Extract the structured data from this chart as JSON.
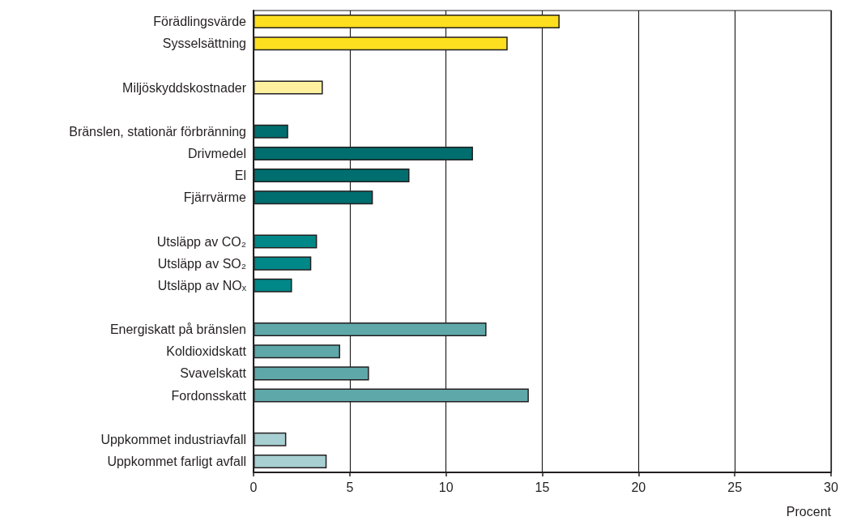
{
  "chart_data": {
    "type": "bar",
    "orientation": "horizontal",
    "xlabel": "Procent",
    "categories": [
      "Förädlingsvärde",
      "Sysselsättning",
      null,
      "Miljöskyddskostnader",
      null,
      "Bränslen, stationär förbränning",
      "Drivmedel",
      "El",
      "Fjärrvärme",
      null,
      "Utsläpp av CO₂",
      "Utsläpp av SO₂",
      "Utsläpp av NOₓ",
      null,
      "Energiskatt på bränslen",
      "Koldioxidskatt",
      "Svavelskatt",
      "Fordonsskatt",
      null,
      "Uppkommet industriavfall",
      "Uppkommet farligt avfall"
    ],
    "values": [
      15.9,
      13.2,
      null,
      3.6,
      null,
      1.8,
      11.4,
      8.1,
      6.2,
      null,
      3.3,
      3.0,
      2.0,
      null,
      12.1,
      4.5,
      6.0,
      14.3,
      null,
      1.7,
      3.8
    ],
    "colors": [
      "#fddf1f",
      "#fddf1f",
      null,
      "#fff0a0",
      null,
      "#006e6e",
      "#006e6e",
      "#006e6e",
      "#006e6e",
      null,
      "#008787",
      "#008787",
      "#008787",
      null,
      "#5fa8aa",
      "#5fa8aa",
      "#5fa8aa",
      "#5fa8aa",
      null,
      "#a8cfd1",
      "#a8cfd1"
    ],
    "xlim": [
      0,
      30
    ],
    "xticks": [
      0,
      5,
      10,
      15,
      20,
      25,
      30
    ],
    "grid": "x"
  }
}
